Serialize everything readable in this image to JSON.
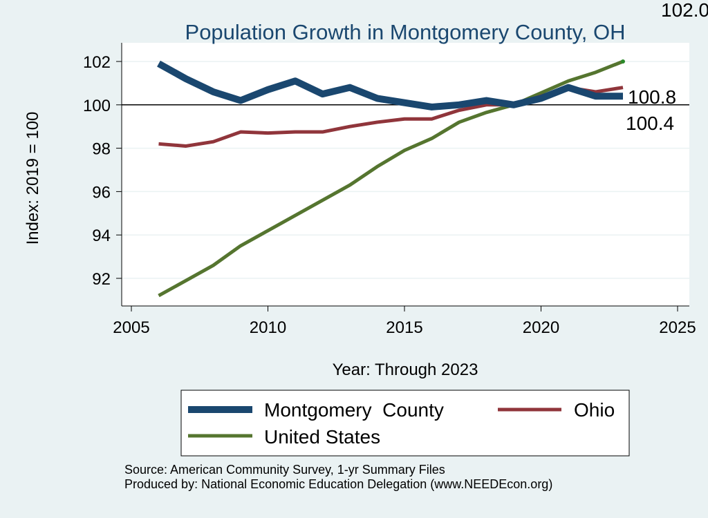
{
  "chart_data": {
    "type": "line",
    "title": "Population Growth in Montgomery County, OH",
    "xlabel": "Year: Through 2023",
    "ylabel": "Index: 2019 = 100",
    "xlim": [
      2005,
      2025
    ],
    "ylim": [
      91.5,
      102.5
    ],
    "xticks": [
      2005,
      2010,
      2015,
      2020,
      2025
    ],
    "yticks": [
      92,
      94,
      96,
      98,
      100,
      102
    ],
    "reference_line": 100,
    "grid": true,
    "legend_position": "bottom",
    "x": [
      2006,
      2007,
      2008,
      2009,
      2010,
      2011,
      2012,
      2013,
      2014,
      2015,
      2016,
      2017,
      2018,
      2019,
      2020,
      2021,
      2022,
      2023
    ],
    "series": [
      {
        "name": "Montgomery  County",
        "color": "#1a476f",
        "width": 10,
        "values": [
          101.9,
          101.2,
          100.6,
          100.2,
          100.7,
          101.1,
          100.5,
          100.8,
          100.3,
          100.1,
          99.9,
          100.0,
          100.2,
          100.0,
          100.3,
          100.8,
          100.4,
          100.4
        ]
      },
      {
        "name": "Ohio",
        "color": "#90353b",
        "width": 5,
        "values": [
          98.2,
          98.1,
          98.3,
          98.75,
          98.7,
          98.75,
          98.75,
          99.0,
          99.2,
          99.35,
          99.35,
          99.75,
          100.0,
          100.0,
          100.4,
          100.8,
          100.6,
          100.8
        ]
      },
      {
        "name": "United States",
        "color": "#55752f",
        "width": 5,
        "values": [
          91.2,
          91.9,
          92.6,
          93.5,
          94.2,
          94.9,
          95.6,
          96.3,
          97.15,
          97.9,
          98.45,
          99.2,
          99.65,
          100.0,
          100.55,
          101.1,
          101.5,
          102.0
        ]
      }
    ],
    "end_labels": [
      "102.0",
      "100.8",
      "100.4"
    ],
    "notes": [
      "Source: American Community Survey, 1-yr Summary Files",
      "Produced by: National Economic Education Delegation (www.NEEDEcon.org)"
    ]
  }
}
